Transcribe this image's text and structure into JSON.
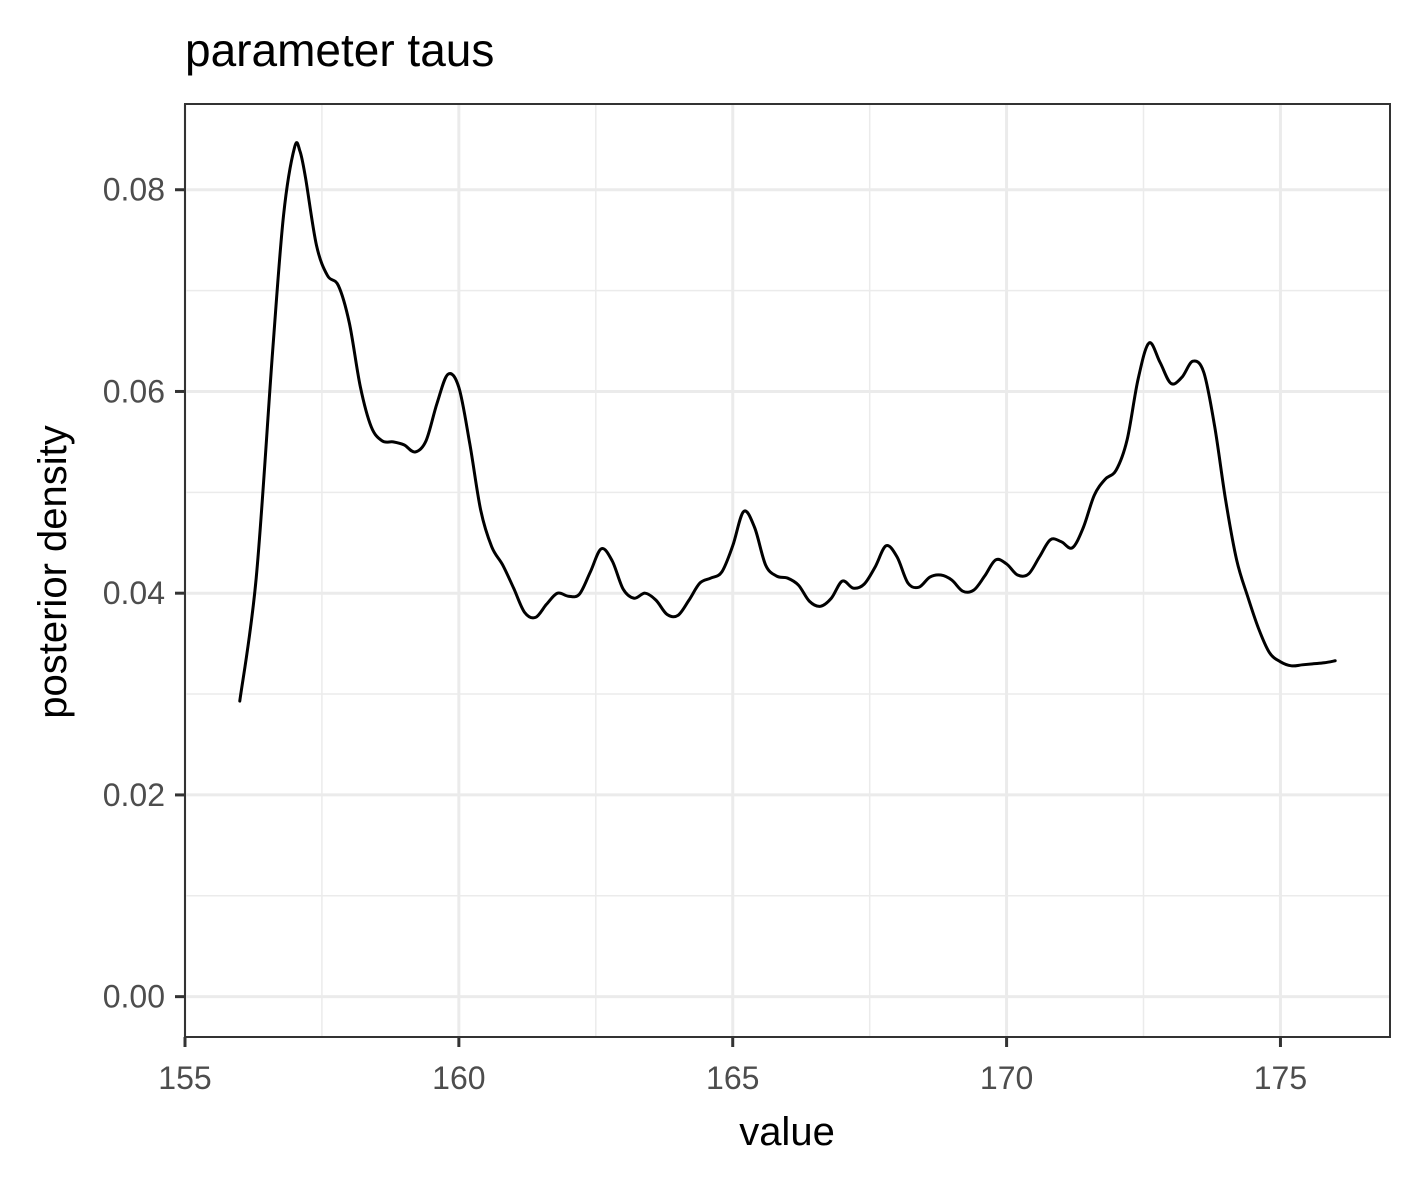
{
  "chart_data": {
    "type": "line",
    "title": "parameter taus",
    "xlabel": "value",
    "ylabel": "posterior density",
    "xlim": [
      155,
      177
    ],
    "ylim": [
      -0.004,
      0.0885
    ],
    "x_ticks": [
      155,
      160,
      165,
      170,
      175
    ],
    "x_tick_labels": [
      "155",
      "160",
      "165",
      "170",
      "175"
    ],
    "x_minor_ticks": [
      157.5,
      162.5,
      167.5,
      172.5
    ],
    "y_ticks": [
      0.0,
      0.02,
      0.04,
      0.06,
      0.08
    ],
    "y_tick_labels": [
      "0.00",
      "0.02",
      "0.04",
      "0.06",
      "0.08"
    ],
    "y_minor_ticks": [
      0.01,
      0.03,
      0.05,
      0.07
    ],
    "grid": true,
    "line_color": "#000000",
    "series": [
      {
        "x": [
          156.0,
          156.3,
          156.6,
          156.8,
          157.0,
          157.1,
          157.2,
          157.4,
          157.6,
          157.8,
          158.0,
          158.2,
          158.4,
          158.6,
          158.8,
          159.0,
          159.2,
          159.4,
          159.6,
          159.8,
          160.0,
          160.2,
          160.4,
          160.6,
          160.8,
          161.0,
          161.2,
          161.4,
          161.6,
          161.8,
          162.0,
          162.2,
          162.4,
          162.6,
          162.8,
          163.0,
          163.2,
          163.4,
          163.6,
          163.8,
          164.0,
          164.2,
          164.4,
          164.6,
          164.8,
          165.0,
          165.2,
          165.4,
          165.6,
          165.8,
          166.0,
          166.2,
          166.4,
          166.6,
          166.8,
          167.0,
          167.2,
          167.4,
          167.6,
          167.8,
          168.0,
          168.2,
          168.4,
          168.6,
          168.8,
          169.0,
          169.2,
          169.4,
          169.6,
          169.8,
          170.0,
          170.2,
          170.4,
          170.6,
          170.8,
          171.0,
          171.2,
          171.4,
          171.6,
          171.8,
          172.0,
          172.2,
          172.4,
          172.6,
          172.8,
          173.0,
          173.2,
          173.4,
          173.6,
          173.8,
          174.0,
          174.2,
          174.4,
          174.6,
          174.8,
          175.0,
          175.2,
          175.4,
          175.6,
          175.8,
          176.0
        ],
        "y": [
          0.0293,
          0.0415,
          0.064,
          0.0775,
          0.0842,
          0.0838,
          0.0812,
          0.0745,
          0.0715,
          0.0705,
          0.0668,
          0.0605,
          0.0565,
          0.0551,
          0.055,
          0.0547,
          0.054,
          0.0551,
          0.0588,
          0.0617,
          0.0604,
          0.0548,
          0.0482,
          0.0446,
          0.0428,
          0.0405,
          0.0381,
          0.0376,
          0.0389,
          0.04,
          0.0397,
          0.0399,
          0.0421,
          0.0444,
          0.0432,
          0.0404,
          0.0395,
          0.04,
          0.0393,
          0.0379,
          0.0378,
          0.0393,
          0.041,
          0.0415,
          0.0421,
          0.0447,
          0.0481,
          0.0465,
          0.0428,
          0.0417,
          0.0415,
          0.0408,
          0.0392,
          0.0387,
          0.0395,
          0.0412,
          0.0405,
          0.0409,
          0.0426,
          0.0447,
          0.0436,
          0.041,
          0.0406,
          0.0416,
          0.0418,
          0.0413,
          0.0402,
          0.0403,
          0.0417,
          0.0433,
          0.0429,
          0.0418,
          0.0419,
          0.0436,
          0.0453,
          0.0451,
          0.0445,
          0.0465,
          0.0497,
          0.0513,
          0.0522,
          0.0552,
          0.0612,
          0.0648,
          0.0629,
          0.0608,
          0.0614,
          0.063,
          0.0619,
          0.0565,
          0.0492,
          0.0433,
          0.0397,
          0.0365,
          0.0341,
          0.0332,
          0.0328,
          0.0329,
          0.033,
          0.0331,
          0.0333
        ]
      }
    ]
  }
}
